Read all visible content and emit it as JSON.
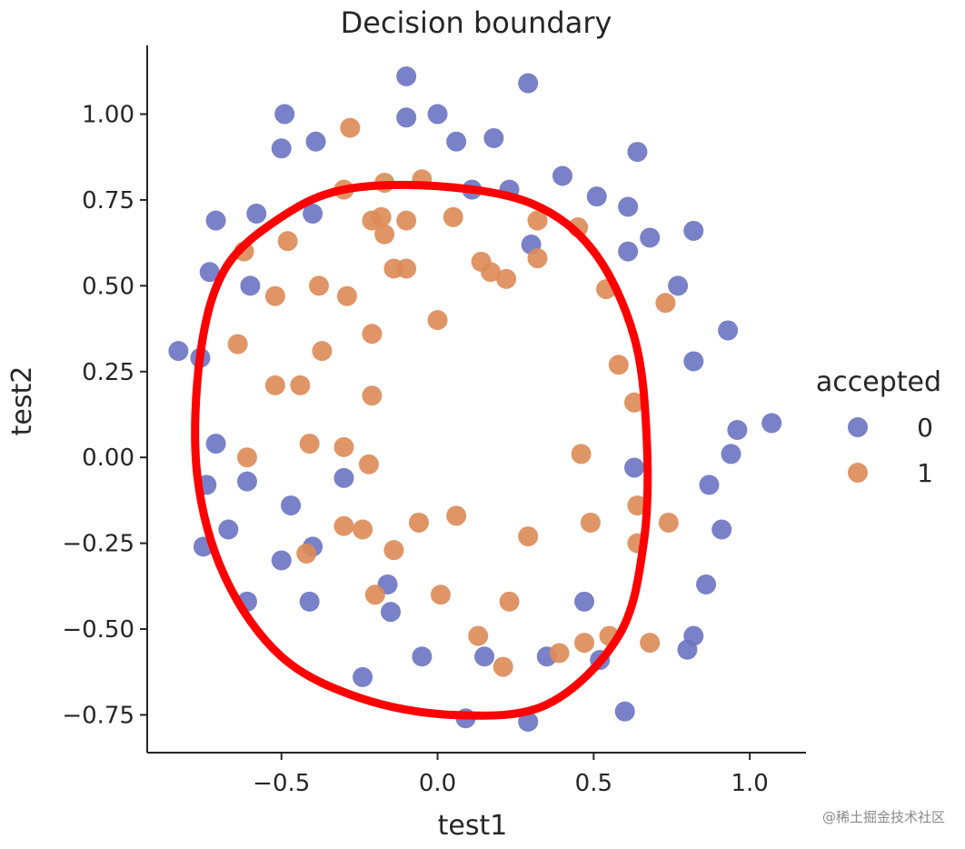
{
  "chart_data": {
    "type": "scatter",
    "title": "Decision boundary",
    "xlabel": "test1",
    "ylabel": "test2",
    "xlim": [
      -0.93,
      1.18
    ],
    "ylim": [
      -0.86,
      1.2
    ],
    "xticks": [
      -0.5,
      0.0,
      0.5,
      1.0
    ],
    "xtick_labels": [
      "−0.5",
      "0.0",
      "0.5",
      "1.0"
    ],
    "yticks": [
      -0.75,
      -0.5,
      -0.25,
      0.0,
      0.25,
      0.5,
      0.75,
      1.0
    ],
    "ytick_labels": [
      "−0.75",
      "−0.50",
      "−0.25",
      "0.00",
      "0.25",
      "0.50",
      "0.75",
      "1.00"
    ],
    "grid": false,
    "legend": {
      "title": "accepted",
      "placement": "right"
    },
    "series": [
      {
        "name": "0",
        "color": "#6a73c2",
        "points": [
          [
            -0.83,
            0.31
          ],
          [
            -0.76,
            0.29
          ],
          [
            -0.73,
            0.54
          ],
          [
            -0.71,
            0.69
          ],
          [
            -0.6,
            0.5
          ],
          [
            -0.58,
            0.71
          ],
          [
            -0.5,
            0.9
          ],
          [
            -0.49,
            1.0
          ],
          [
            -0.39,
            0.92
          ],
          [
            -0.4,
            0.71
          ],
          [
            -0.1,
            1.11
          ],
          [
            -0.1,
            0.99
          ],
          [
            0.0,
            1.0
          ],
          [
            0.06,
            0.92
          ],
          [
            0.11,
            0.78
          ],
          [
            0.18,
            0.93
          ],
          [
            0.23,
            0.78
          ],
          [
            0.29,
            1.09
          ],
          [
            0.3,
            0.62
          ],
          [
            0.4,
            0.82
          ],
          [
            0.51,
            0.76
          ],
          [
            0.61,
            0.73
          ],
          [
            0.64,
            0.89
          ],
          [
            0.61,
            0.6
          ],
          [
            0.68,
            0.64
          ],
          [
            0.77,
            0.5
          ],
          [
            0.82,
            0.66
          ],
          [
            0.93,
            0.37
          ],
          [
            0.82,
            0.28
          ],
          [
            1.07,
            0.1
          ],
          [
            0.96,
            0.08
          ],
          [
            0.94,
            0.01
          ],
          [
            0.87,
            -0.08
          ],
          [
            0.91,
            -0.21
          ],
          [
            0.86,
            -0.37
          ],
          [
            0.82,
            -0.52
          ],
          [
            0.8,
            -0.56
          ],
          [
            0.6,
            -0.74
          ],
          [
            0.63,
            -0.03
          ],
          [
            0.47,
            -0.42
          ],
          [
            0.52,
            -0.59
          ],
          [
            0.35,
            -0.58
          ],
          [
            0.29,
            -0.77
          ],
          [
            0.15,
            -0.58
          ],
          [
            0.09,
            -0.76
          ],
          [
            -0.05,
            -0.58
          ],
          [
            -0.24,
            -0.64
          ],
          [
            -0.15,
            -0.45
          ],
          [
            -0.16,
            -0.37
          ],
          [
            -0.3,
            -0.06
          ],
          [
            -0.4,
            -0.26
          ],
          [
            -0.41,
            -0.42
          ],
          [
            -0.5,
            -0.3
          ],
          [
            -0.47,
            -0.14
          ],
          [
            -0.61,
            -0.07
          ],
          [
            -0.61,
            -0.42
          ],
          [
            -0.67,
            -0.21
          ],
          [
            -0.75,
            -0.26
          ],
          [
            -0.74,
            -0.08
          ],
          [
            -0.71,
            0.04
          ]
        ]
      },
      {
        "name": "1",
        "color": "#dd8a57",
        "points": [
          [
            -0.62,
            0.6
          ],
          [
            -0.52,
            0.47
          ],
          [
            -0.48,
            0.63
          ],
          [
            -0.38,
            0.5
          ],
          [
            -0.3,
            0.78
          ],
          [
            -0.28,
            0.96
          ],
          [
            -0.29,
            0.47
          ],
          [
            -0.17,
            0.8
          ],
          [
            -0.21,
            0.69
          ],
          [
            -0.18,
            0.7
          ],
          [
            -0.17,
            0.65
          ],
          [
            -0.14,
            0.55
          ],
          [
            -0.1,
            0.55
          ],
          [
            -0.1,
            0.69
          ],
          [
            -0.05,
            0.81
          ],
          [
            0.05,
            0.7
          ],
          [
            0.14,
            0.57
          ],
          [
            0.17,
            0.54
          ],
          [
            0.22,
            0.52
          ],
          [
            0.32,
            0.69
          ],
          [
            0.32,
            0.58
          ],
          [
            0.45,
            0.67
          ],
          [
            0.54,
            0.49
          ],
          [
            0.73,
            0.45
          ],
          [
            0.58,
            0.27
          ],
          [
            0.63,
            0.16
          ],
          [
            0.46,
            0.01
          ],
          [
            0.64,
            -0.14
          ],
          [
            0.49,
            -0.19
          ],
          [
            0.74,
            -0.19
          ],
          [
            0.64,
            -0.25
          ],
          [
            0.68,
            -0.54
          ],
          [
            0.55,
            -0.52
          ],
          [
            0.47,
            -0.54
          ],
          [
            0.39,
            -0.57
          ],
          [
            0.21,
            -0.61
          ],
          [
            0.23,
            -0.42
          ],
          [
            0.13,
            -0.52
          ],
          [
            0.01,
            -0.4
          ],
          [
            0.06,
            -0.17
          ],
          [
            0.29,
            -0.23
          ],
          [
            -0.06,
            -0.19
          ],
          [
            -0.14,
            -0.27
          ],
          [
            -0.2,
            -0.4
          ],
          [
            -0.24,
            -0.21
          ],
          [
            -0.3,
            -0.2
          ],
          [
            -0.42,
            -0.28
          ],
          [
            -0.22,
            -0.02
          ],
          [
            -0.3,
            0.03
          ],
          [
            -0.41,
            0.04
          ],
          [
            -0.61,
            0.0
          ],
          [
            -0.52,
            0.21
          ],
          [
            -0.44,
            0.21
          ],
          [
            -0.37,
            0.31
          ],
          [
            -0.21,
            0.36
          ],
          [
            -0.21,
            0.18
          ],
          [
            -0.64,
            0.33
          ],
          [
            0.0,
            0.4
          ]
        ]
      }
    ],
    "boundary": {
      "color": "#ff0000",
      "points": [
        [
          -0.5,
          0.7
        ],
        [
          -0.3,
          0.78
        ],
        [
          0.0,
          0.79
        ],
        [
          0.3,
          0.74
        ],
        [
          0.5,
          0.6
        ],
        [
          0.63,
          0.35
        ],
        [
          0.67,
          0.05
        ],
        [
          0.66,
          -0.25
        ],
        [
          0.58,
          -0.52
        ],
        [
          0.35,
          -0.72
        ],
        [
          0.05,
          -0.75
        ],
        [
          -0.25,
          -0.7
        ],
        [
          -0.5,
          -0.58
        ],
        [
          -0.68,
          -0.35
        ],
        [
          -0.77,
          -0.05
        ],
        [
          -0.76,
          0.3
        ],
        [
          -0.68,
          0.55
        ]
      ]
    },
    "watermark": "@稀土掘金技术社区"
  }
}
